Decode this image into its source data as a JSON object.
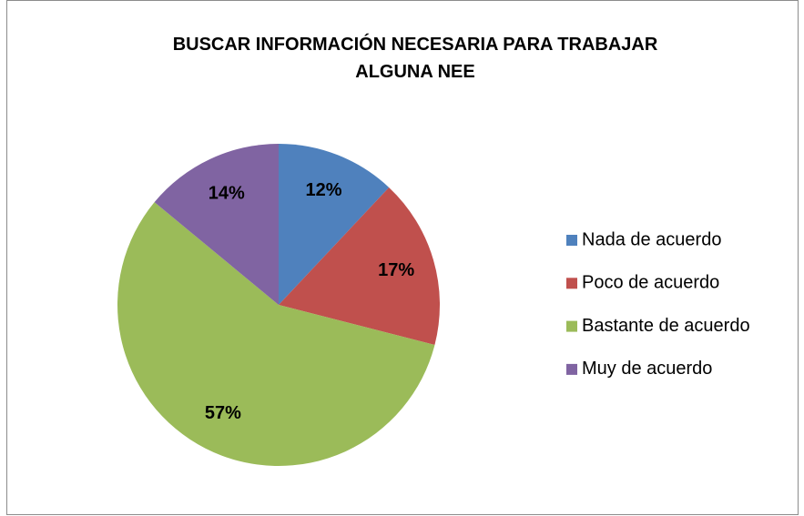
{
  "chart_data": {
    "type": "pie",
    "title": "BUSCAR INFORMACIÓN NECESARIA PARA TRABAJAR ALGUNA NEE",
    "categories": [
      "Nada de acuerdo",
      "Poco de acuerdo",
      "Bastante de acuerdo",
      "Muy de acuerdo"
    ],
    "values": [
      12,
      17,
      57,
      14
    ],
    "value_labels": [
      "12%",
      "17%",
      "57%",
      "14%"
    ],
    "colors": [
      "#4f81bd",
      "#c0504d",
      "#9bbb59",
      "#8064a2"
    ],
    "legend": "right"
  }
}
